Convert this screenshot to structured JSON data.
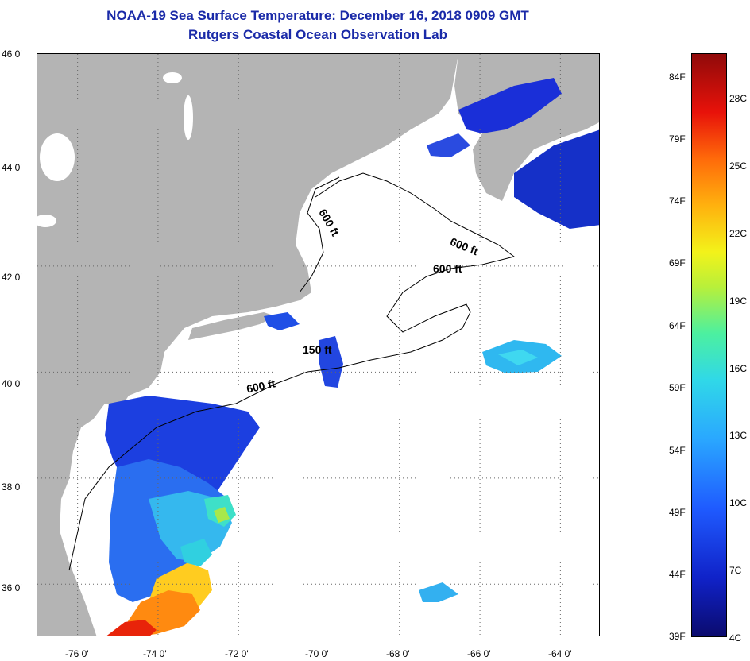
{
  "header": {
    "title": "NOAA-19 Sea Surface Temperature:  December 16, 2018 0909 GMT",
    "subtitle": "Rutgers Coastal Ocean Observation Lab"
  },
  "map": {
    "lat_range": [
      35,
      46
    ],
    "lon_range": [
      -77,
      -63
    ],
    "lat_ticks": [
      "46 0'",
      "44 0'",
      "42 0'",
      "40 0'",
      "38 0'",
      "36 0'"
    ],
    "lon_ticks": [
      "-76 0'",
      "-74 0'",
      "-72 0'",
      "-70 0'",
      "-68 0'",
      "-66 0'",
      "-64 0'"
    ],
    "contour_labels": [
      "600 ft",
      "600 ft",
      "600 ft",
      "150 ft",
      "600 ft"
    ],
    "land_color": "#b4b4b4",
    "water_color": "#ffffff"
  },
  "colorbar": {
    "fahrenheit": [
      "84F",
      "79F",
      "74F",
      "69F",
      "64F",
      "59F",
      "54F",
      "49F",
      "44F",
      "39F"
    ],
    "celsius": [
      "28C",
      "25C",
      "22C",
      "19C",
      "16C",
      "13C",
      "10C",
      "7C",
      "4C"
    ]
  }
}
